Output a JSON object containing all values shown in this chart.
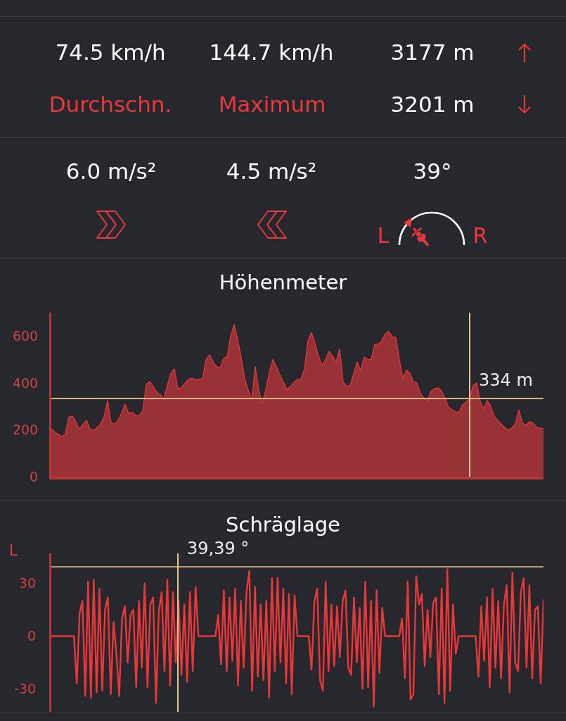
{
  "chart_data": [
    {
      "type": "other",
      "annotations": [
        "74.5 km/h",
        "144.7 km/h",
        "3177 m",
        "Durchschn.",
        "Maximum",
        "3201 m",
        "6.0 m/s²",
        "4.5 m/s²",
        "39°",
        "L",
        "R"
      ]
    },
    {
      "type": "area",
      "title": "Höhenmeter",
      "categories": [
        null,
        null,
        null,
        null,
        null,
        null,
        null,
        null,
        null,
        null,
        null,
        null,
        null,
        null,
        null,
        null,
        null,
        null,
        null,
        null,
        null,
        null,
        null,
        null,
        null,
        null,
        null,
        null,
        null,
        null,
        null,
        null,
        null,
        null,
        null,
        null,
        null,
        null,
        null,
        null,
        null,
        null,
        null,
        null,
        null,
        null,
        null,
        null,
        null,
        null,
        null,
        null,
        null,
        null,
        null,
        null,
        null,
        null,
        null,
        null,
        null,
        null,
        null,
        null,
        null,
        null,
        null,
        null,
        null,
        null,
        null,
        null,
        null,
        null,
        null,
        null,
        null,
        null,
        null,
        null,
        null,
        null,
        null,
        null,
        null,
        null,
        null,
        null,
        null,
        null,
        null,
        null,
        null,
        null,
        null,
        null,
        null,
        null,
        null,
        null,
        null,
        null,
        null,
        null,
        null,
        null,
        null,
        null,
        null,
        null,
        null,
        null,
        null,
        null,
        null,
        null,
        null,
        null,
        null,
        null,
        null,
        null,
        null,
        null,
        null,
        null,
        null,
        null,
        null,
        null,
        null,
        null,
        null,
        null,
        null,
        null,
        null,
        null,
        null,
        null,
        null
      ],
      "series": [
        {
          "color": "#e0383b",
          "values": [
            205,
            190,
            180,
            170,
            183,
            255,
            258,
            234,
            200,
            225,
            240,
            205,
            197,
            210,
            225,
            255,
            325,
            230,
            225,
            240,
            272,
            310,
            270,
            275,
            262,
            262,
            280,
            395,
            405,
            385,
            360,
            350,
            330,
            390,
            440,
            460,
            375,
            380,
            398,
            415,
            420,
            415,
            415,
            418,
            500,
            520,
            490,
            470,
            465,
            505,
            512,
            600,
            650,
            585,
            510,
            420,
            370,
            328,
            470,
            370,
            312,
            370,
            445,
            500,
            470,
            435,
            405,
            372,
            385,
            402,
            415,
            416,
            460,
            580,
            615,
            570,
            515,
            475,
            500,
            535,
            515,
            490,
            545,
            405,
            385,
            390,
            440,
            490,
            452,
            510,
            500,
            500,
            565,
            565,
            580,
            610,
            620,
            595,
            595,
            500,
            420,
            455,
            440,
            405,
            400,
            355,
            335,
            325,
            365,
            375,
            380,
            365,
            335,
            297,
            285,
            277,
            275,
            308,
            318,
            334,
            390,
            400,
            320,
            290,
            325,
            300,
            258,
            240,
            225,
            210,
            198,
            208,
            225,
            285,
            228,
            220,
            235,
            230,
            210,
            207,
            205
          ]
        }
      ],
      "ylim": [
        0,
        700
      ],
      "yticks": [
        0,
        200,
        400,
        600
      ],
      "tick_labels": "y",
      "ref_lines": [
        {
          "axis": "y",
          "value": 334,
          "label": "334 m",
          "color": "#e9c58f"
        }
      ]
    },
    {
      "type": "line",
      "title": "Schräglage",
      "categories": [
        null,
        null,
        null,
        null,
        null,
        null,
        null,
        null,
        null,
        null,
        null,
        null,
        null,
        null,
        null,
        null,
        null,
        null,
        null,
        null,
        null,
        null,
        null,
        null,
        null,
        null,
        null,
        null,
        null,
        null,
        null,
        null,
        null,
        null,
        null,
        null,
        null,
        null,
        null,
        null,
        null,
        null,
        null,
        null,
        null,
        null,
        null,
        null,
        null,
        null,
        null,
        null,
        null,
        null,
        null,
        null,
        null,
        null,
        null,
        null,
        null,
        null,
        null,
        null,
        null,
        null,
        null,
        null,
        null,
        null,
        null,
        null,
        null,
        null,
        null,
        null,
        null,
        null,
        null,
        null,
        null,
        null,
        null,
        null,
        null,
        null,
        null,
        null,
        null,
        null,
        null,
        null,
        null,
        null,
        null,
        null,
        null,
        null,
        null,
        null,
        null,
        null,
        null,
        null,
        null,
        null,
        null,
        null,
        null,
        null,
        null,
        null,
        null,
        null,
        null,
        null,
        null,
        null,
        null,
        null,
        null,
        null,
        null,
        null,
        null,
        null,
        null,
        null,
        null,
        null,
        null,
        null,
        null,
        null,
        null,
        null,
        null,
        null,
        null,
        null,
        null,
        null,
        null,
        null,
        null,
        null,
        null,
        null,
        null,
        null,
        null,
        null,
        null,
        null,
        null,
        null,
        null,
        null,
        null,
        null,
        null,
        null,
        null,
        null,
        null,
        null,
        null,
        null,
        null,
        null,
        null,
        null,
        null,
        null,
        null
      ],
      "series": [
        {
          "color": "#e8383a",
          "values": [
            0,
            0,
            0,
            0,
            0,
            0,
            0,
            0,
            0,
            -27,
            13,
            20,
            -34,
            31,
            -35,
            32,
            -32,
            27,
            -31,
            15,
            22,
            -33,
            8,
            -10,
            -34,
            10,
            17,
            -15,
            12,
            15,
            -29,
            20,
            -18,
            30,
            -29,
            18,
            22,
            -38,
            14,
            25,
            -20,
            32,
            -28,
            25,
            -15,
            20,
            -22,
            18,
            -26,
            25,
            -20,
            28,
            0,
            0,
            0,
            0,
            0,
            0,
            0,
            12,
            -16,
            26,
            -20,
            22,
            -14,
            27,
            -28,
            20,
            -18,
            25,
            37,
            -31,
            28,
            -23,
            18,
            -25,
            20,
            -35,
            33,
            -20,
            33,
            -15,
            27,
            -27,
            24,
            -33,
            23,
            0,
            0,
            0,
            0,
            0,
            -19,
            20,
            27,
            -25,
            -31,
            31,
            -20,
            18,
            -17,
            17,
            -12,
            20,
            26,
            -18,
            -22,
            22,
            -15,
            16,
            -30,
            31,
            -29,
            20,
            -40,
            26,
            -21,
            16,
            0,
            0,
            0,
            0,
            0,
            0,
            10,
            -24,
            31,
            -36,
            -33,
            34,
            18,
            24,
            -17,
            15,
            -12,
            19,
            22,
            -33,
            27,
            -38,
            38,
            -31,
            18,
            -10,
            0,
            0,
            0,
            0,
            0,
            0,
            0,
            -23,
            17,
            -14,
            22,
            -29,
            27,
            -18,
            20,
            -24,
            18,
            29,
            -32,
            36,
            -15,
            -20,
            25,
            33,
            -18,
            29,
            -24,
            15,
            17,
            -27,
            21
          ]
        }
      ],
      "ylim": [
        -43,
        47
      ],
      "yticks": [
        -30,
        0,
        30
      ],
      "tick_labels": "y",
      "annotations": [
        "L"
      ],
      "ref_lines": [
        {
          "axis": "y",
          "value": 39.39,
          "label": "39,39 °",
          "color": "#e9c58f"
        }
      ]
    }
  ]
}
